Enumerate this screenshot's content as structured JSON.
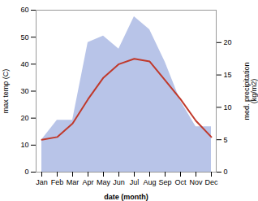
{
  "chart_data": {
    "type": "line",
    "categories": [
      "Jan",
      "Feb",
      "Mar",
      "Apr",
      "May",
      "Jun",
      "Jul",
      "Aug",
      "Sep",
      "Oct",
      "Nov",
      "Dec"
    ],
    "series": [
      {
        "type": "area",
        "color": "#b8c4e8",
        "axis": "y2",
        "values": [
          5,
          8,
          8,
          20,
          21,
          19,
          24,
          22,
          17,
          11,
          7,
          7
        ]
      },
      {
        "type": "line",
        "color": "#c0392b",
        "values": [
          12,
          13,
          18,
          27,
          35,
          40,
          42,
          41,
          34,
          27,
          19,
          13
        ]
      }
    ],
    "xlabel": "date (month)",
    "ylabel": "max temp (C)",
    "y2label": "med. precipitation\n(kg/m2)",
    "ylim": [
      0,
      60
    ],
    "yticks": [
      0,
      10,
      20,
      30,
      40,
      50,
      60
    ],
    "y2lim": [
      0,
      25
    ],
    "y2ticks": [
      0,
      5,
      10,
      15,
      20
    ],
    "grid": false
  }
}
